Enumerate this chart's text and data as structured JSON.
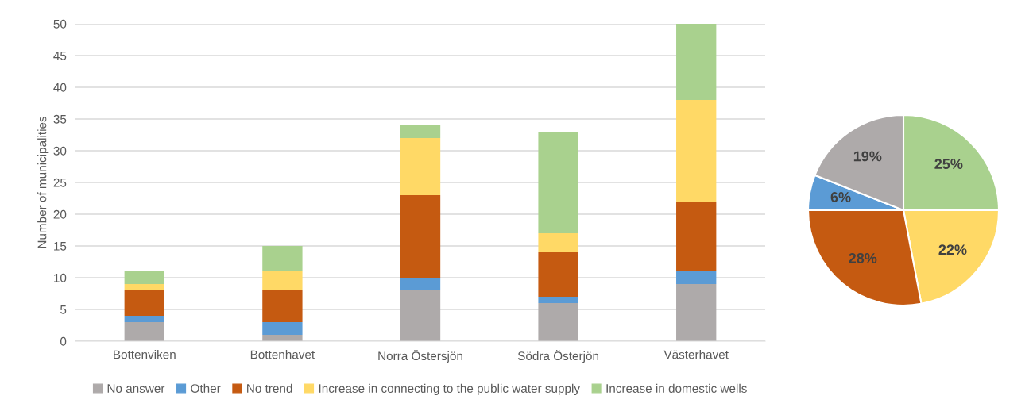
{
  "chart_data": [
    {
      "type": "bar",
      "stacked": true,
      "ylabel": "Number of municipalities",
      "categories": [
        "Bottenviken",
        "Bottenhavet",
        "Norra Östersjön",
        "Södra Österjön",
        "Västerhavet"
      ],
      "series": [
        {
          "name": "No answer",
          "color": "#aeaaaa",
          "values": [
            3,
            1,
            8,
            6,
            9
          ]
        },
        {
          "name": "Other",
          "color": "#5b9bd5",
          "values": [
            1,
            2,
            2,
            1,
            2
          ]
        },
        {
          "name": "No trend",
          "color": "#c55a11",
          "values": [
            4,
            5,
            13,
            7,
            11
          ]
        },
        {
          "name": "Increase in connecting to the public water supply",
          "color": "#ffd966",
          "values": [
            1,
            3,
            9,
            3,
            16
          ]
        },
        {
          "name": "Increase in domestic wells",
          "color": "#a9d18e",
          "values": [
            2,
            4,
            2,
            16,
            12
          ]
        }
      ],
      "ylim": [
        0,
        50
      ],
      "yticks": [
        0,
        5,
        10,
        15,
        20,
        25,
        30,
        35,
        40,
        45,
        50
      ],
      "grid": "y",
      "legend": "bottom"
    },
    {
      "type": "pie",
      "categories": [
        null,
        null,
        null,
        null,
        null
      ],
      "values": [
        25,
        22,
        28,
        6,
        19
      ],
      "colors": [
        "#a9d18e",
        "#ffd966",
        "#c55a11",
        "#5b9bd5",
        "#aeaaaa"
      ],
      "value_labels": [
        "25%",
        "22%",
        "28%",
        "6%",
        "19%"
      ]
    }
  ]
}
